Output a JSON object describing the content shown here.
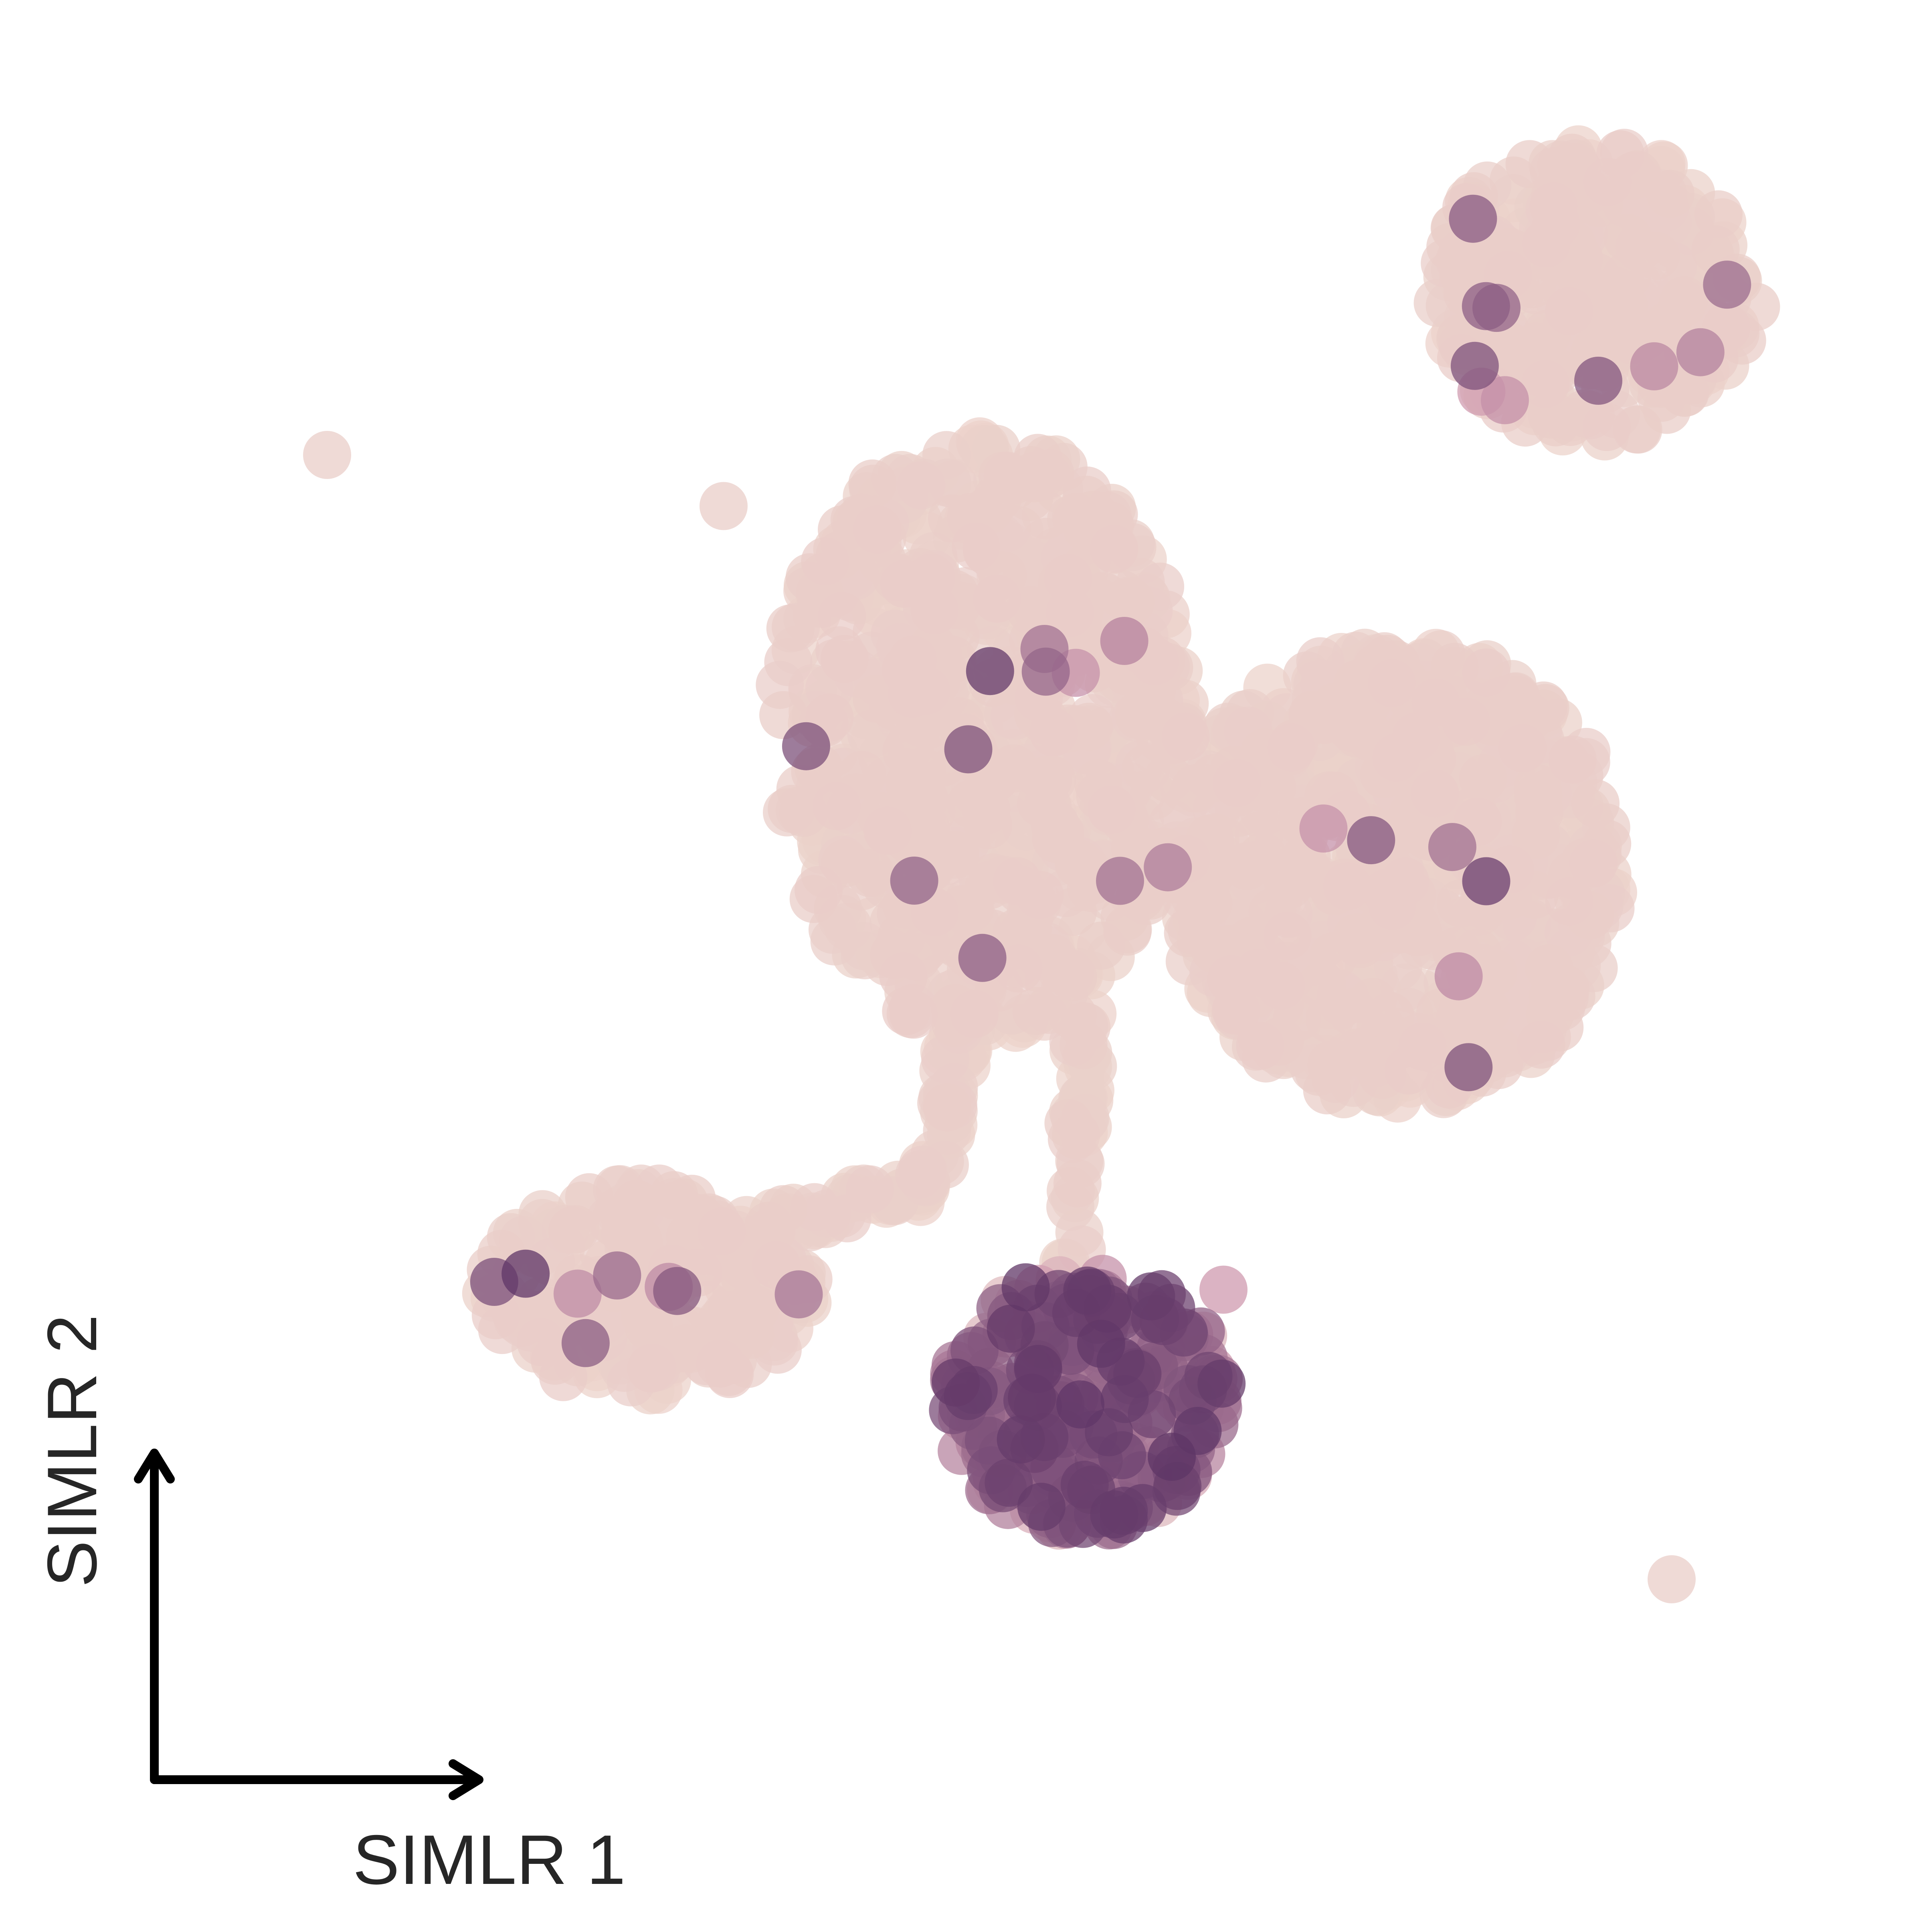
{
  "chart_data": {
    "type": "scatter",
    "title": "",
    "xlabel": "SIMLR 1",
    "ylabel": "SIMLR 2",
    "xlim": [
      0,
      100
    ],
    "ylim": [
      0,
      100
    ],
    "grid": false,
    "legend": "none",
    "colors": {
      "low": "#ecd3cb",
      "mid": "#cf9aaf",
      "high": "#5e3566",
      "axis": "#000000",
      "text": "#262626"
    },
    "clusters": [
      {
        "name_hint": "top-right",
        "x": [
          76,
          95
        ],
        "y": [
          79,
          96
        ],
        "n": 340,
        "shape": "ellipse",
        "hi_frac": 0.04
      },
      {
        "name_hint": "upper-middle",
        "x": [
          38,
          62
        ],
        "y": [
          44,
          79
        ],
        "n": 700,
        "shape": "ellipse",
        "hi_frac": 0.015
      },
      {
        "name_hint": "right-large",
        "x": [
          61,
          87
        ],
        "y": [
          40,
          67
        ],
        "n": 780,
        "shape": "ellipse",
        "hi_frac": 0.015
      },
      {
        "name_hint": "lower-left",
        "x": [
          21,
          40
        ],
        "y": [
          23,
          35
        ],
        "n": 230,
        "shape": "ellipse",
        "hi_frac": 0.03
      },
      {
        "name_hint": "bottom-dark",
        "x": [
          48,
          64
        ],
        "y": [
          15,
          30
        ],
        "n": 260,
        "shape": "ellipse",
        "hi_frac": 0.75
      }
    ],
    "bridges": [
      {
        "from": [
          38,
          33
        ],
        "to": [
          47,
          35
        ],
        "n": 40
      },
      {
        "from": [
          47,
          35
        ],
        "to": [
          49,
          46
        ],
        "n": 40
      },
      {
        "from": [
          55,
          30
        ],
        "to": [
          56,
          46
        ],
        "n": 35
      }
    ],
    "outliers": [
      {
        "x": 12,
        "y": 78,
        "level": 0.05
      },
      {
        "x": 35,
        "y": 75,
        "level": 0.05
      },
      {
        "x": 90,
        "y": 12,
        "level": 0.05
      },
      {
        "x": 58,
        "y": 53,
        "level": 0.7
      },
      {
        "x": 64,
        "y": 29,
        "level": 0.5
      }
    ]
  }
}
